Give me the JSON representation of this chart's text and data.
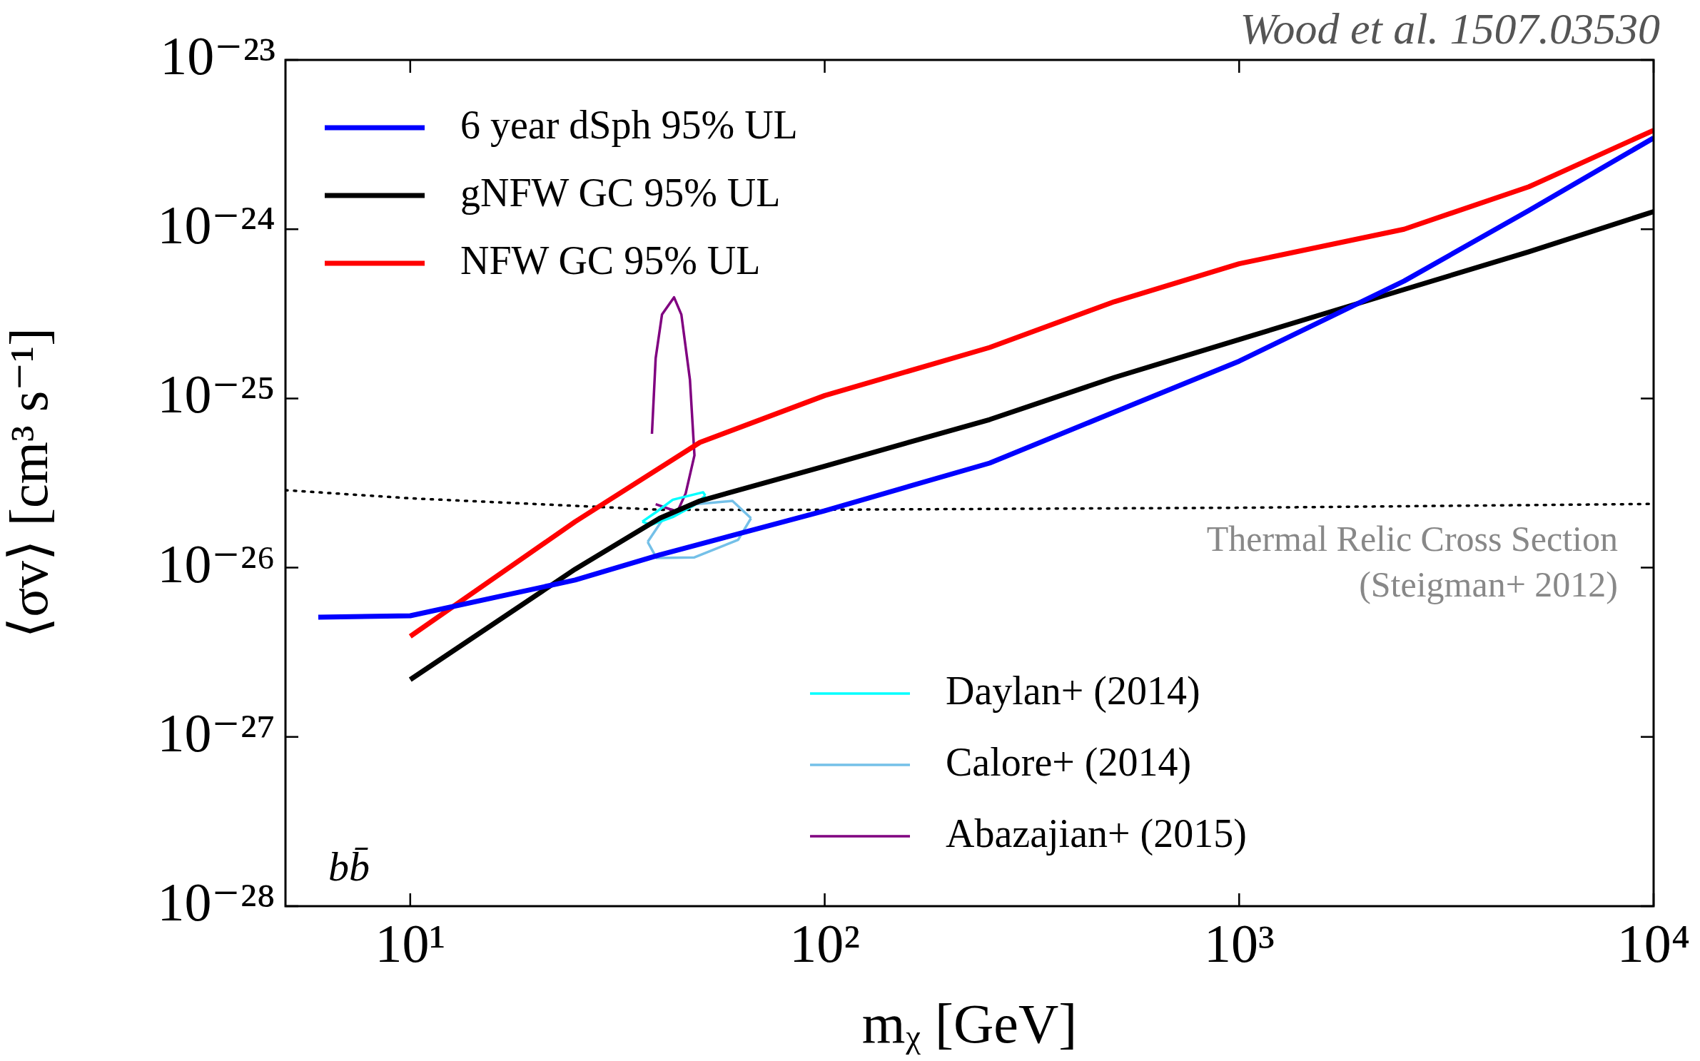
{
  "chart_data": {
    "type": "line",
    "xlabel": "mᵪ [GeV]",
    "ylabel": "⟨σv⟩ [cm³ s⁻¹]",
    "log": "xy",
    "grid": false,
    "legend": "top left",
    "xlim": [
      5,
      10000
    ],
    "ylim": [
      1e-28,
      1e-23
    ],
    "xticks": [
      {
        "value": 10,
        "label": "10¹"
      },
      {
        "value": 100,
        "label": "10²"
      },
      {
        "value": 1000,
        "label": "10³"
      },
      {
        "value": 10000,
        "label": "10⁴"
      }
    ],
    "yticks": [
      {
        "value": 1e-28,
        "label": "10⁻²⁸"
      },
      {
        "value": 1e-27,
        "label": "10⁻²⁷"
      },
      {
        "value": 1e-26,
        "label": "10⁻²⁶"
      },
      {
        "value": 1e-25,
        "label": "10⁻²⁵"
      },
      {
        "value": 1e-24,
        "label": "10⁻²⁴"
      },
      {
        "value": 1e-23,
        "label": "10⁻²³"
      }
    ],
    "series": [
      {
        "name": "6 year dSph 95% UL",
        "color": "#0000ff",
        "x": [
          6,
          10,
          25,
          40,
          100,
          250,
          500,
          1000,
          2500,
          5000,
          10000
        ],
        "values": [
          5.1e-27,
          5.2e-27,
          8.45e-27,
          1.19e-26,
          2.17e-26,
          4.15e-26,
          8.3e-26,
          1.66e-25,
          4.94e-25,
          1.29e-24,
          3.46e-24
        ]
      },
      {
        "name": "gNFW GC 95% UL",
        "color": "#000000",
        "x": [
          10,
          25,
          40,
          50,
          100,
          250,
          500,
          1000,
          2500,
          5000,
          10000
        ],
        "values": [
          2.18e-27,
          9.8e-27,
          1.96e-26,
          2.48e-26,
          3.98e-26,
          7.5e-26,
          1.33e-25,
          2.23e-25,
          4.4e-25,
          7.36e-25,
          1.27e-24
        ]
      },
      {
        "name": "NFW GC 95% UL",
        "color": "#ff0000",
        "x": [
          10,
          25,
          50,
          100,
          250,
          500,
          1000,
          2500,
          5000,
          10000
        ],
        "values": [
          3.93e-27,
          1.87e-26,
          5.5e-26,
          1.04e-25,
          2e-25,
          3.73e-25,
          6.25e-25,
          1e-24,
          1.78e-24,
          3.84e-24
        ]
      },
      {
        "name": "Daylan+ (2014)",
        "color": "#00ffff",
        "x": [
          36.3,
          39.3,
          43.0,
          50.9,
          51.5
        ],
        "values": [
          1.87e-26,
          2.14e-26,
          2.52e-26,
          2.79e-26,
          2.67e-26
        ]
      },
      {
        "color": "#00ffff",
        "x": [
          36.3,
          38.1,
          43.0,
          48.5,
          51.5
        ],
        "values": [
          1.87e-26,
          1.79e-26,
          1.99e-26,
          2.34e-26,
          2.67e-26
        ]
      },
      {
        "name": "Calore+ (2014)",
        "color": "#74c0e8",
        "x": [
          37.4,
          40.5,
          48.5,
          59.9,
          66.4
        ],
        "values": [
          1.42e-26,
          1.9e-26,
          2.37e-26,
          2.48e-26,
          1.96e-26
        ]
      },
      {
        "color": "#74c0e8",
        "x": [
          37.4,
          39.3,
          48.5,
          61.8,
          66.4
        ],
        "values": [
          1.42e-26,
          1.14e-26,
          1.15e-26,
          1.46e-26,
          1.96e-26
        ]
      },
      {
        "name": "Abazajian+ (2015)",
        "color": "#800080",
        "x": [
          38.3,
          39.1,
          40.5,
          43.3,
          45.1,
          47.3,
          48.5,
          46.2,
          44.1,
          39.1
        ],
        "values": [
          6.18e-26,
          1.73e-25,
          3.13e-25,
          3.96e-25,
          3.13e-25,
          1.29e-25,
          4.61e-26,
          2.75e-26,
          2.14e-26,
          2.37e-26
        ]
      },
      {
        "color": "#000000",
        "line_style": "dotted",
        "x": [
          5,
          10,
          40,
          100,
          1000,
          10000
        ],
        "values": [
          2.87e-26,
          2.57e-26,
          2.2e-26,
          2.2e-26,
          2.26e-26,
          2.38e-26
        ]
      }
    ],
    "annotations": [
      "Wood et al. 1507.03530",
      "bb̄",
      "Thermal Relic Cross Section\n(Steigman+ 2012)"
    ]
  }
}
